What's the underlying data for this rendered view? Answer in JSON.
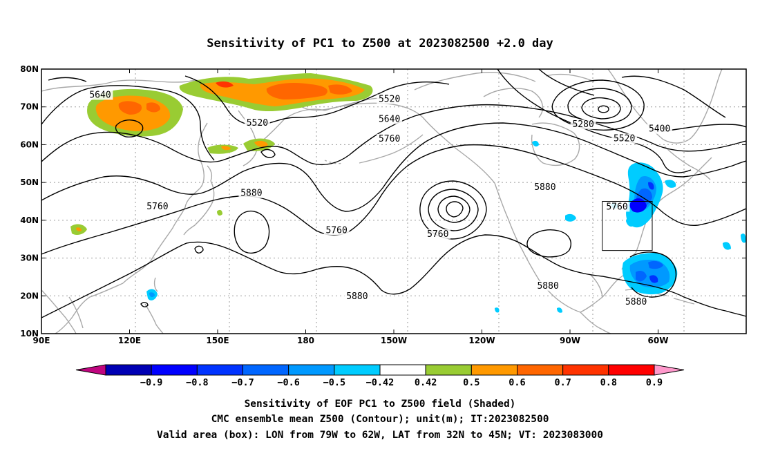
{
  "title": "Sensitivity of PC1 to Z500 at 2023082500 +2.0 day",
  "map": {
    "lon_range": [
      90,
      330
    ],
    "lat_range": [
      10,
      80
    ],
    "lon_ticks": [
      {
        "lon": 90,
        "label": "90E"
      },
      {
        "lon": 120,
        "label": "120E"
      },
      {
        "lon": 150,
        "label": "150E"
      },
      {
        "lon": 180,
        "label": "180"
      },
      {
        "lon": 210,
        "label": "150W"
      },
      {
        "lon": 240,
        "label": "120W"
      },
      {
        "lon": 270,
        "label": "90W"
      },
      {
        "lon": 300,
        "label": "60W"
      }
    ],
    "lat_ticks": [
      {
        "lat": 80,
        "label": "80N"
      },
      {
        "lat": 70,
        "label": "70N"
      },
      {
        "lat": 60,
        "label": "60N"
      },
      {
        "lat": 50,
        "label": "50N"
      },
      {
        "lat": 40,
        "label": "40N"
      },
      {
        "lat": 30,
        "label": "30N"
      },
      {
        "lat": 20,
        "label": "20N"
      },
      {
        "lat": 10,
        "label": "10N"
      }
    ],
    "valid_box": {
      "lon_min": 281,
      "lon_max": 298,
      "lat_min": 32,
      "lat_max": 45
    },
    "contour_labels": [
      {
        "text": "5640",
        "lon": 110,
        "lat": 72.6
      },
      {
        "text": "5520",
        "lon": 163.5,
        "lat": 65.2
      },
      {
        "text": "5520",
        "lon": 208.5,
        "lat": 71.5
      },
      {
        "text": "5640",
        "lon": 208.5,
        "lat": 66.2
      },
      {
        "text": "5760",
        "lon": 208.5,
        "lat": 61.0
      },
      {
        "text": "5280",
        "lon": 274.5,
        "lat": 64.8
      },
      {
        "text": "5400",
        "lon": 300.5,
        "lat": 63.6
      },
      {
        "text": "5520",
        "lon": 288.5,
        "lat": 61.1
      },
      {
        "text": "5880",
        "lon": 161.5,
        "lat": 46.6
      },
      {
        "text": "5760",
        "lon": 129.5,
        "lat": 43.1
      },
      {
        "text": "5760",
        "lon": 190.5,
        "lat": 36.8
      },
      {
        "text": "5760",
        "lon": 225,
        "lat": 35.8
      },
      {
        "text": "5880",
        "lon": 261.5,
        "lat": 48.2
      },
      {
        "text": "5760",
        "lon": 286,
        "lat": 43.0
      },
      {
        "text": "5880",
        "lon": 197.5,
        "lat": 19.3
      },
      {
        "text": "5880",
        "lon": 262.5,
        "lat": 22.1
      },
      {
        "text": "5880",
        "lon": 292.5,
        "lat": 17.9
      }
    ]
  },
  "colorbar": {
    "colors": [
      "#c0057f",
      "#0000b4",
      "#0000ff",
      "#0033ff",
      "#0066ff",
      "#0099ff",
      "#00ccff",
      "#ffffff",
      "#99cc33",
      "#ff9900",
      "#ff6600",
      "#ff3300",
      "#ff0000",
      "#ff99cc"
    ],
    "labels": [
      "−0.9",
      "−0.8",
      "−0.7",
      "−0.6",
      "−0.5",
      "−0.42",
      "0.42",
      "0.5",
      "0.6",
      "0.7",
      "0.8",
      "0.9"
    ]
  },
  "footer": {
    "line1": "Sensitivity of EOF PC1 to Z500 field (Shaded)",
    "line2": "CMC ensemble mean Z500 (Contour); unit(m); IT:2023082500",
    "line3": "Valid area (box): LON from 79W to 62W, LAT from 32N to 45N; VT: 2023083000"
  }
}
